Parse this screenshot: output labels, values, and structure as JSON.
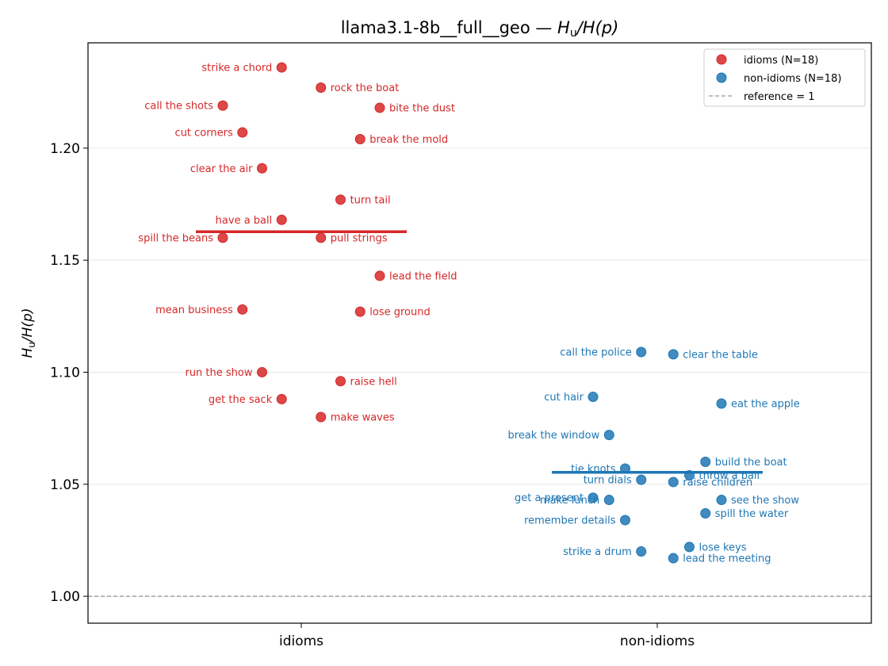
{
  "chart_data": {
    "type": "scatter",
    "title_text": "llama3.1-8b__full__geo — ",
    "title_math": {
      "main": "H",
      "sub": "u",
      "rest": "/H(p)"
    },
    "ylabel_math": {
      "main": "H",
      "sub": "u",
      "rest": "/H(p)"
    },
    "categories": [
      "idioms",
      "non-idioms"
    ],
    "ylim": [
      0.988,
      1.247
    ],
    "yticks": [
      1.0,
      1.05,
      1.1,
      1.15,
      1.2
    ],
    "ytick_labels": [
      "1.00",
      "1.05",
      "1.10",
      "1.15",
      "1.20"
    ],
    "grid": "y",
    "legend_position": "top-right",
    "reference_value": 1,
    "reference_label": "reference = 1",
    "reference_color": "#999999",
    "series": [
      {
        "name": "idioms (N=18)",
        "category": "idioms",
        "color": "#d62728",
        "mean": 1.1627,
        "points": [
          {
            "label": "strike a chord",
            "x": -0.055,
            "y": 1.236,
            "side": "left"
          },
          {
            "label": "rock the boat",
            "x": 0.055,
            "y": 1.227,
            "side": "right"
          },
          {
            "label": "call the shots",
            "x": -0.22,
            "y": 1.219,
            "side": "left"
          },
          {
            "label": "bite the dust",
            "x": 0.22,
            "y": 1.218,
            "side": "right"
          },
          {
            "label": "cut corners",
            "x": -0.165,
            "y": 1.207,
            "side": "left"
          },
          {
            "label": "break the mold",
            "x": 0.165,
            "y": 1.204,
            "side": "right"
          },
          {
            "label": "clear the air",
            "x": -0.11,
            "y": 1.191,
            "side": "left"
          },
          {
            "label": "turn tail",
            "x": 0.11,
            "y": 1.177,
            "side": "right"
          },
          {
            "label": "have a ball",
            "x": -0.055,
            "y": 1.168,
            "side": "left"
          },
          {
            "label": "spill the beans",
            "x": -0.22,
            "y": 1.16,
            "side": "left"
          },
          {
            "label": "pull strings",
            "x": 0.055,
            "y": 1.16,
            "side": "right"
          },
          {
            "label": "lead the field",
            "x": 0.22,
            "y": 1.143,
            "side": "right"
          },
          {
            "label": "mean business",
            "x": -0.165,
            "y": 1.128,
            "side": "left"
          },
          {
            "label": "lose ground",
            "x": 0.165,
            "y": 1.127,
            "side": "right"
          },
          {
            "label": "run the show",
            "x": -0.11,
            "y": 1.1,
            "side": "left"
          },
          {
            "label": "raise hell",
            "x": 0.11,
            "y": 1.096,
            "side": "right"
          },
          {
            "label": "get the sack",
            "x": -0.055,
            "y": 1.088,
            "side": "left"
          },
          {
            "label": "make waves",
            "x": 0.055,
            "y": 1.08,
            "side": "right"
          }
        ]
      },
      {
        "name": "non-idioms (N=18)",
        "category": "non-idioms",
        "color": "#1f77b4",
        "mean": 1.0553,
        "points": [
          {
            "label": "call the police",
            "x": -0.045,
            "y": 1.109,
            "side": "left"
          },
          {
            "label": "clear the table",
            "x": 0.045,
            "y": 1.108,
            "side": "right"
          },
          {
            "label": "cut hair",
            "x": -0.18,
            "y": 1.089,
            "side": "left"
          },
          {
            "label": "eat the apple",
            "x": 0.18,
            "y": 1.086,
            "side": "right"
          },
          {
            "label": "break the window",
            "x": -0.135,
            "y": 1.072,
            "side": "left"
          },
          {
            "label": "build the boat",
            "x": 0.135,
            "y": 1.06,
            "side": "right"
          },
          {
            "label": "tie knots",
            "x": -0.09,
            "y": 1.057,
            "side": "left"
          },
          {
            "label": "throw a ball",
            "x": 0.09,
            "y": 1.054,
            "side": "right"
          },
          {
            "label": "turn dials",
            "x": -0.045,
            "y": 1.052,
            "side": "left"
          },
          {
            "label": "raise children",
            "x": 0.045,
            "y": 1.051,
            "side": "right"
          },
          {
            "label": "get a present",
            "x": -0.18,
            "y": 1.044,
            "side": "left"
          },
          {
            "label": "make lunch",
            "x": -0.135,
            "y": 1.043,
            "side": "left"
          },
          {
            "label": "see the show",
            "x": 0.18,
            "y": 1.043,
            "side": "right"
          },
          {
            "label": "spill the water",
            "x": 0.135,
            "y": 1.037,
            "side": "right"
          },
          {
            "label": "remember details",
            "x": -0.09,
            "y": 1.034,
            "side": "left"
          },
          {
            "label": "lose keys",
            "x": 0.09,
            "y": 1.022,
            "side": "right"
          },
          {
            "label": "strike a drum",
            "x": -0.045,
            "y": 1.02,
            "side": "left"
          },
          {
            "label": "lead the meeting",
            "x": 0.045,
            "y": 1.017,
            "side": "right"
          }
        ]
      }
    ]
  }
}
